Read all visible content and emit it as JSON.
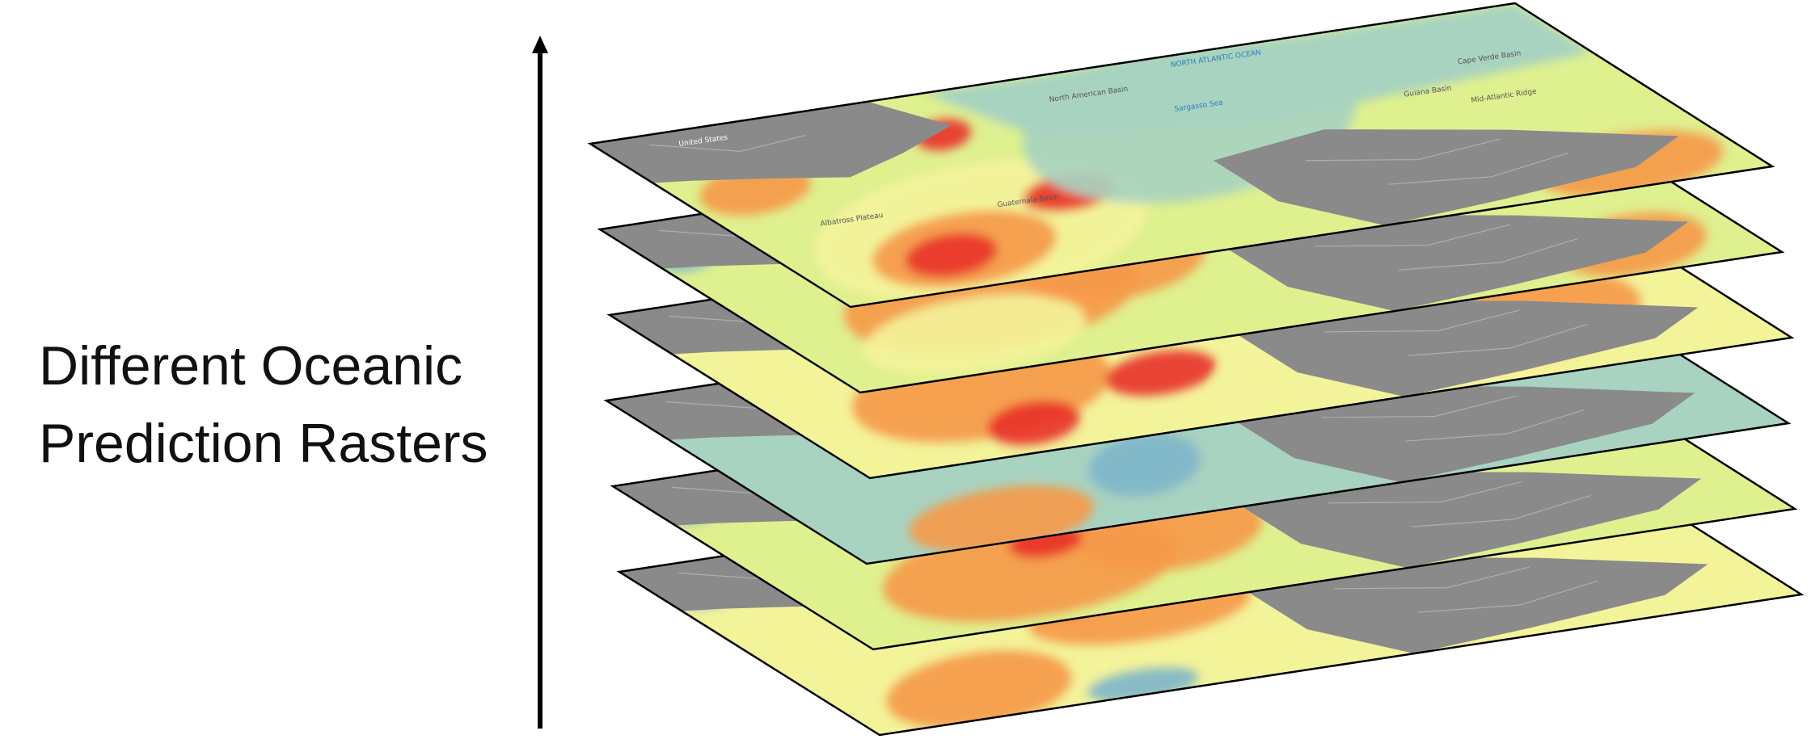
{
  "caption": {
    "line1": "Different Oceanic",
    "line2": "Prediction Rasters"
  },
  "axis": {
    "icon": "up-arrow-icon"
  },
  "colors": {
    "land": "#8a8a8a",
    "ocean_low": "#a8d3c0",
    "ocean_mid": "#dff08f",
    "ocean_yellow": "#f3f39a",
    "ocean_orange": "#f59a4a",
    "ocean_red": "#e8342a",
    "ocean_blue": "#7fb6c9",
    "outline": "#000000"
  },
  "map_labels": {
    "united_states": "United States",
    "north_atlantic_ocean": "NORTH ATLANTIC OCEAN",
    "sargasso_sea": "Sargasso Sea",
    "north_american_basin": "North American Basin",
    "cape_verde_basin": "Cape Verde Basin",
    "mid_atlantic_ridge": "Mid-Atlantic Ridge",
    "guiana_basin": "Guiana Basin",
    "guatemala_basin": "Guatemala Basin",
    "albatross_plateau": "Albatross Plateau"
  },
  "layers": [
    {
      "name": "raster-layer-1"
    },
    {
      "name": "raster-layer-2"
    },
    {
      "name": "raster-layer-3"
    },
    {
      "name": "raster-layer-4"
    },
    {
      "name": "raster-layer-5"
    },
    {
      "name": "raster-layer-6"
    }
  ]
}
